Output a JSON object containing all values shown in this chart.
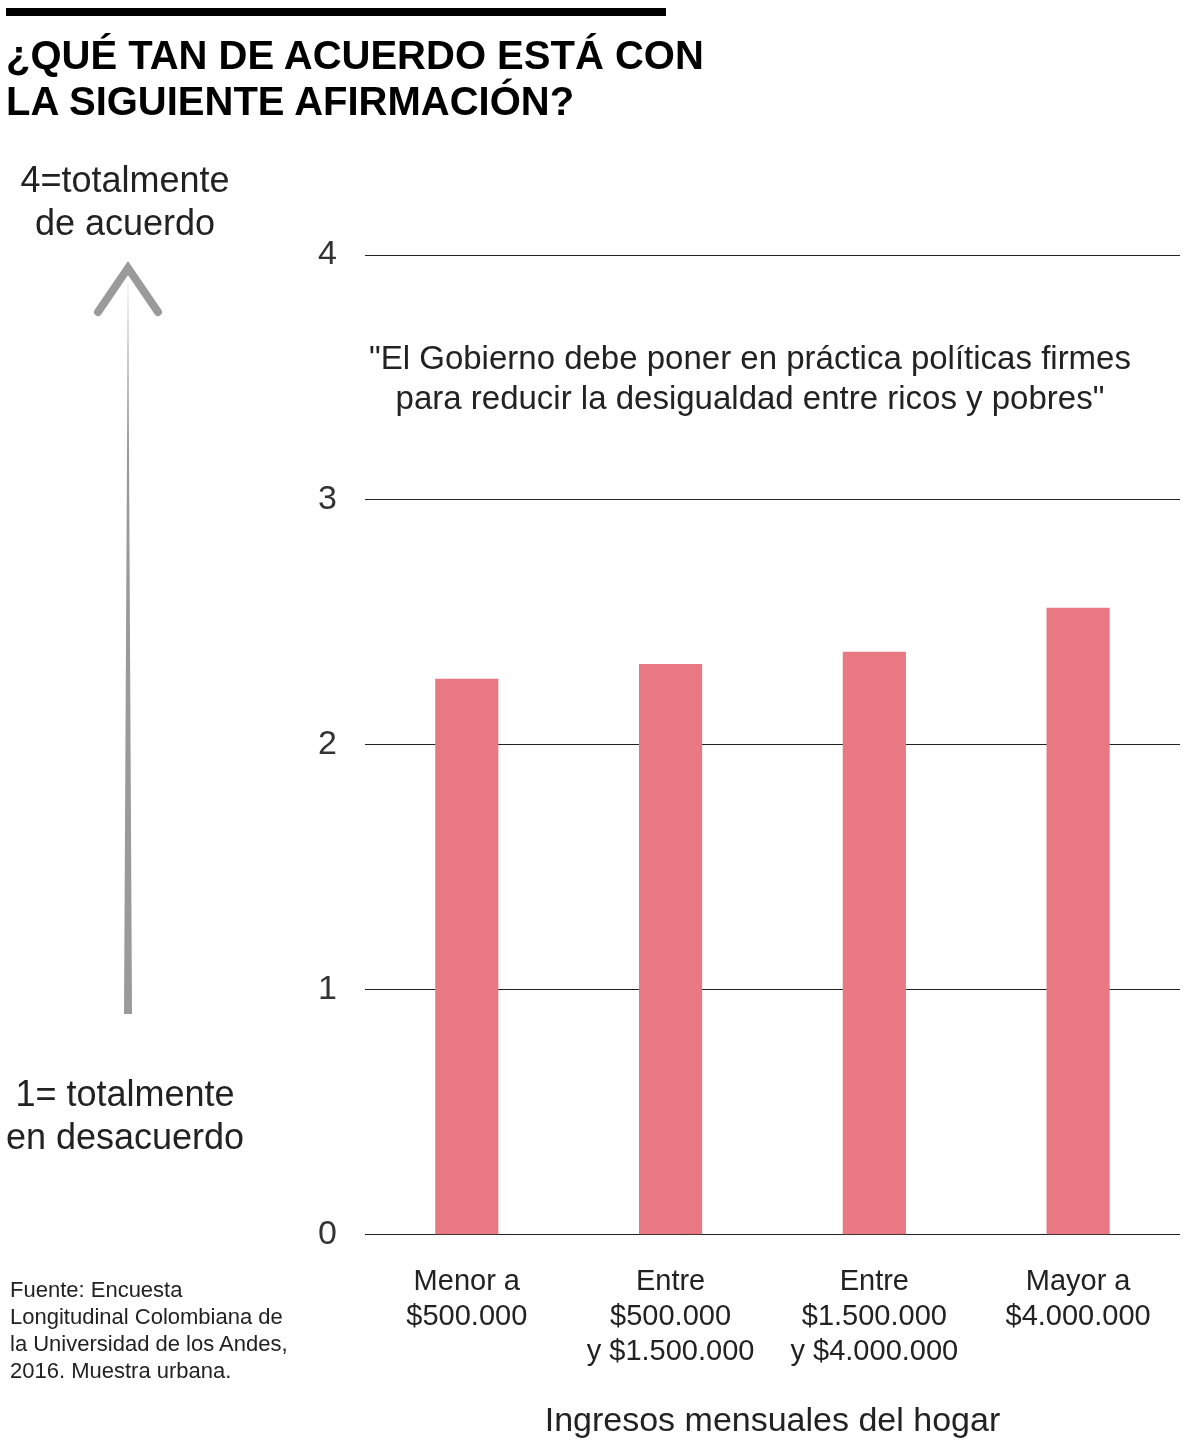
{
  "chart_data": {
    "type": "bar",
    "title": "¿QUÉ TAN DE ACUERDO ESTÁ CON\nLA SIGUIENTE AFIRMACIÓN?",
    "xlabel": "Ingresos mensuales del hogar",
    "categories": [
      "Menor a\n$500.000",
      "Entre\n$500.000\ny $1.500.000",
      "Entre\n$1.500.000\ny $4.000.000",
      "Mayor a\n$4.000.000"
    ],
    "values": [
      2.27,
      2.33,
      2.38,
      2.56
    ],
    "color": "#e87983",
    "ylim": [
      0,
      4
    ],
    "yticks": [
      0,
      1,
      2,
      3,
      4
    ],
    "grid": "y",
    "annotations": [
      "\"El Gobierno debe poner en práctica políticas firmes\npara reducir la desigualdad entre ricos y pobres\"",
      "4=totalmente\nde acuerdo",
      "1= totalmente\nen desacuerdo",
      "Fuente: Encuesta\nLongitudinal Colombiana de\nla Universidad de los Andes,\n2016. Muestra urbana."
    ]
  }
}
